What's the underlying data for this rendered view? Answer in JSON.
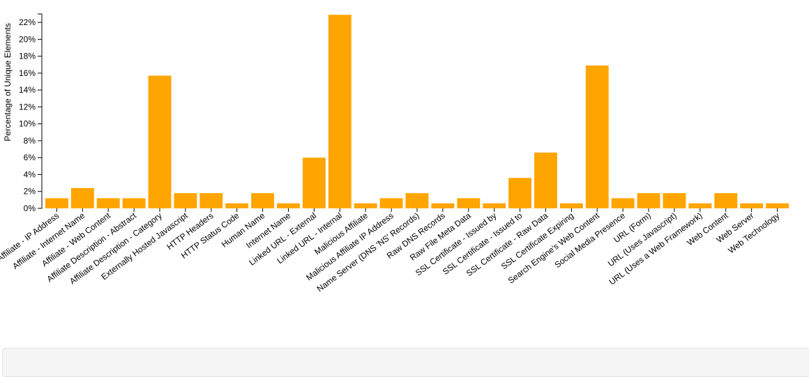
{
  "chart_data": {
    "type": "bar",
    "ylabel": "Percentage of Unique Elements",
    "y_tick_format": "{v}%",
    "ylim": [
      0,
      23
    ],
    "y_ticks": [
      0,
      2,
      4,
      6,
      8,
      10,
      12,
      14,
      16,
      18,
      20,
      22
    ],
    "bar_color": "#FFA500",
    "grid": false,
    "categories": [
      "Affiliate - IP Address",
      "Affiliate - Internet Name",
      "Affiliate - Web Content",
      "Affiliate Description - Abstract",
      "Affiliate Description - Category",
      "Externally Hosted Javascript",
      "HTTP Headers",
      "HTTP Status Code",
      "Human Name",
      "Internet Name",
      "Linked URL - External",
      "Linked URL - Internal",
      "Malicious Affiliate",
      "Malicious Affiliate IP Address",
      "Name Server (DNS 'NS' Records)",
      "Raw DNS Records",
      "Raw File Meta Data",
      "SSL Certificate - Issued by",
      "SSL Certificate - Issued to",
      "SSL Certificate - Raw Data",
      "SSL Certificate Expiring",
      "Search Engine's Web Content",
      "Social Media Presence",
      "URL (Form)",
      "URL (Uses Javascript)",
      "URL (Uses a Web Framework)",
      "Web Content",
      "Web Server",
      "Web Technology"
    ],
    "values": [
      1.2,
      2.4,
      1.2,
      1.2,
      15.7,
      1.8,
      1.8,
      0.6,
      1.8,
      0.6,
      6.0,
      22.9,
      0.6,
      1.2,
      1.8,
      0.6,
      1.2,
      0.6,
      3.6,
      6.6,
      0.6,
      16.9,
      1.2,
      1.8,
      1.8,
      0.6,
      1.8,
      0.6,
      0.6
    ]
  }
}
